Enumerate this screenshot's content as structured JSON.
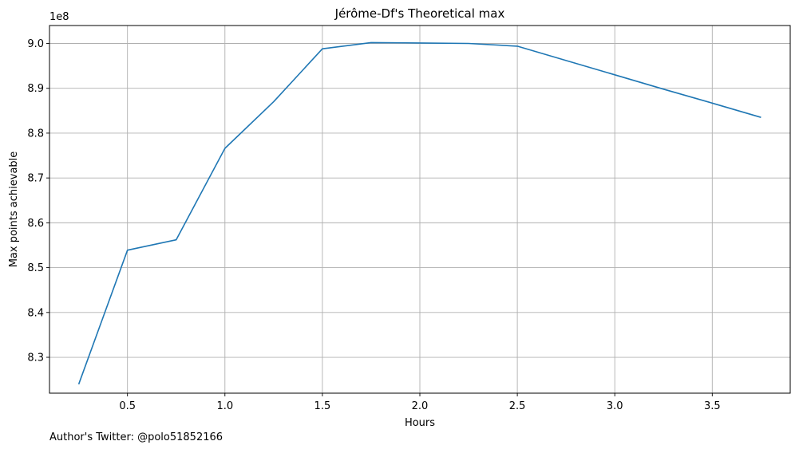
{
  "chart_data": {
    "type": "line",
    "title": "Jérôme-Df's Theoretical max",
    "xlabel": "Hours",
    "ylabel": "Max points achievable",
    "y_offset_label": "1e8",
    "y_scale_factor": 100000000,
    "xlim": [
      0.1,
      3.9
    ],
    "ylim": [
      8.22,
      9.04
    ],
    "x_ticks": [
      0.5,
      1.0,
      1.5,
      2.0,
      2.5,
      3.0,
      3.5
    ],
    "x_tick_labels": [
      "0.5",
      "1.0",
      "1.5",
      "2.0",
      "2.5",
      "3.0",
      "3.5"
    ],
    "y_ticks": [
      8.3,
      8.4,
      8.5,
      8.6,
      8.7,
      8.8,
      8.9,
      9.0
    ],
    "y_tick_labels": [
      "8.3",
      "8.4",
      "8.5",
      "8.6",
      "8.7",
      "8.8",
      "8.9",
      "9.0"
    ],
    "grid": true,
    "series": [
      {
        "color": "#1f77b4",
        "x": [
          0.25,
          0.5,
          0.75,
          1.0,
          1.25,
          1.5,
          1.75,
          2.0,
          2.25,
          2.5,
          2.75,
          3.0,
          3.25,
          3.5,
          3.75
        ],
        "y": [
          8.24,
          8.539,
          8.562,
          8.766,
          8.87,
          8.988,
          9.002,
          9.001,
          9.0,
          8.994,
          8.962,
          8.93,
          8.898,
          8.867,
          8.835
        ]
      }
    ]
  },
  "footer": {
    "credit": "Author's Twitter: @polo51852166"
  }
}
